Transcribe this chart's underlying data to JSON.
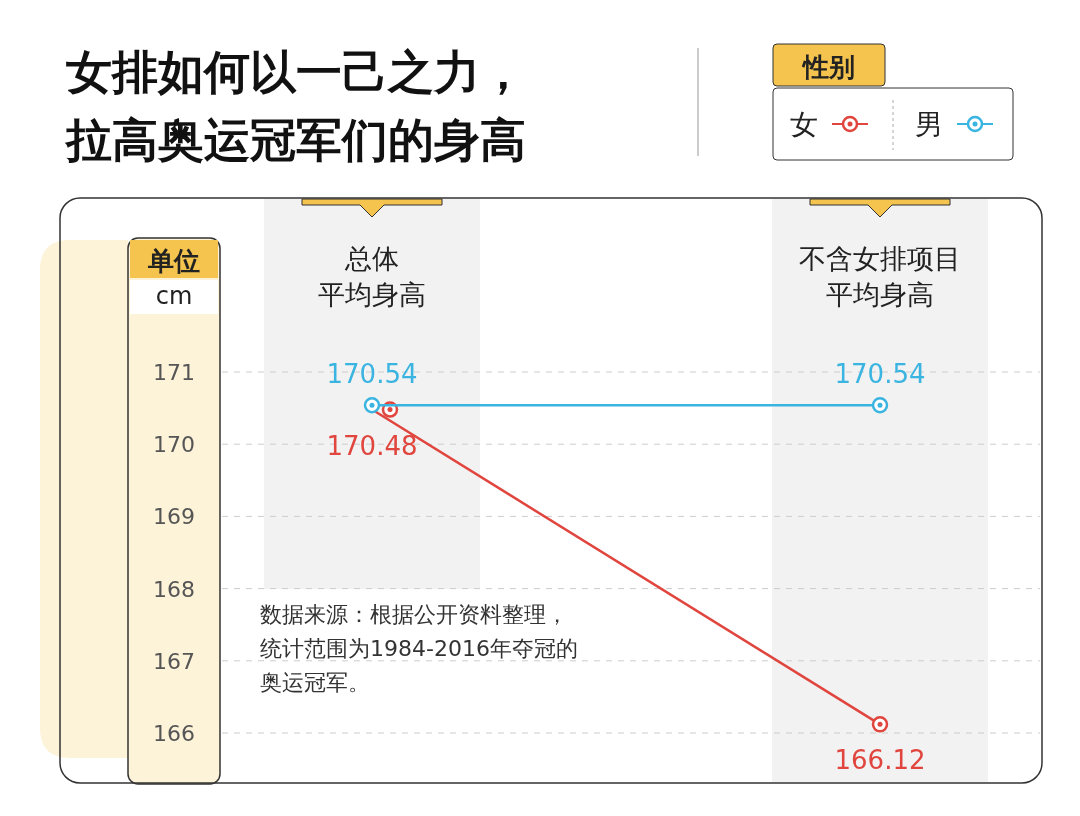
{
  "chart_data": {
    "type": "line",
    "title": "女排如何以一己之力，拉高奥运冠军们的身高",
    "categories": [
      "总体平均身高",
      "不含女排项目平均身高"
    ],
    "series": [
      {
        "name": "女",
        "color": "#e0453e",
        "values": [
          170.48,
          166.12
        ]
      },
      {
        "name": "男",
        "color": "#3ab4e0",
        "values": [
          170.54,
          170.54
        ]
      }
    ],
    "ylabel": "单位 cm",
    "legend_title": "性别",
    "legend": "top right",
    "ylim": [
      166,
      171
    ],
    "yticks": [
      166,
      167,
      168,
      169,
      170,
      171
    ],
    "grid": "y",
    "marker": "circle",
    "line_style": "solid",
    "data_labels": true,
    "annotations": [
      "数据来源：根据公开资料整理，统计范围为1984-2016年夺冠的奥运冠军。"
    ]
  }
}
